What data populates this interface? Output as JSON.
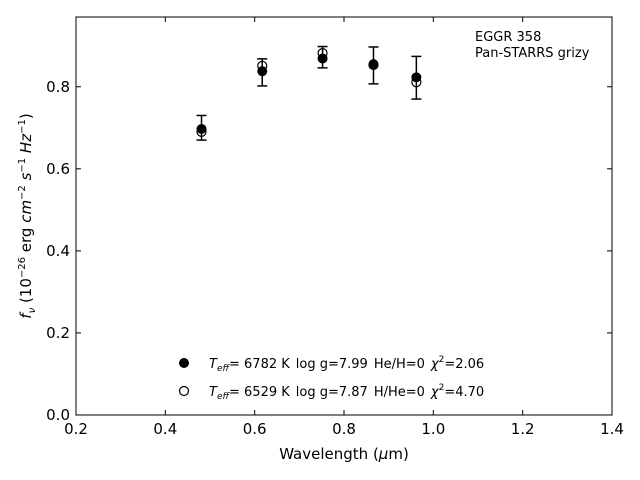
{
  "chart_data": {
    "type": "scatter",
    "xlabel": "Wavelength (μm)",
    "ylabel": "fν (10⁻²⁶ erg cm⁻² s⁻¹ Hz⁻¹)",
    "xlim": [
      0.2,
      1.4
    ],
    "ylim": [
      0.0,
      0.97
    ],
    "xticks": [
      0.2,
      0.4,
      0.6,
      0.8,
      1.0,
      1.2,
      1.4
    ],
    "yticks": [
      0.0,
      0.2,
      0.4,
      0.6,
      0.8
    ],
    "xtick_labels": [
      "0.2",
      "0.4",
      "0.6",
      "0.8",
      "1.0",
      "1.2",
      "1.4"
    ],
    "ytick_labels": [
      "0.0",
      "0.2",
      "0.4",
      "0.6",
      "0.8"
    ],
    "grid": false,
    "legend_position": "bottom-center",
    "annotation": {
      "line1": "EGGR 358",
      "line2": "Pan-STARRS grizy"
    },
    "observed": {
      "x": [
        0.481,
        0.617,
        0.752,
        0.866,
        0.962
      ],
      "y": [
        0.7,
        0.835,
        0.872,
        0.852,
        0.822
      ],
      "yerr": [
        0.03,
        0.033,
        0.026,
        0.045,
        0.052
      ]
    },
    "series": [
      {
        "name": "Teff= 6782 K log g=7.99 He/H=0 χ²=2.06",
        "marker": "filled-circle",
        "x": [
          0.481,
          0.617,
          0.752,
          0.866,
          0.962
        ],
        "y": [
          0.697,
          0.838,
          0.869,
          0.855,
          0.823
        ]
      },
      {
        "name": "Teff= 6529 K log g=7.87 H/He=0 χ²=4.70",
        "marker": "open-circle",
        "x": [
          0.481,
          0.617,
          0.752,
          0.866,
          0.962
        ],
        "y": [
          0.69,
          0.851,
          0.882,
          0.853,
          0.811
        ]
      }
    ],
    "legend": [
      {
        "teff_label": "T",
        "teff_sub": "eff",
        "temp": "=  6782 K",
        "logg": "log g=7.99",
        "comp": "He/H=0",
        "chi_label": "χ",
        "chi_sup": "2",
        "chi_val": "=2.06"
      },
      {
        "teff_label": "T",
        "teff_sub": "eff",
        "temp": "=  6529 K",
        "logg": "log g=7.87",
        "comp": "H/He=0",
        "chi_label": "χ",
        "chi_sup": "2",
        "chi_val": "=4.70"
      }
    ],
    "colors": {
      "axis": "#000000",
      "marker": "#000000",
      "background": "#ffffff"
    }
  }
}
